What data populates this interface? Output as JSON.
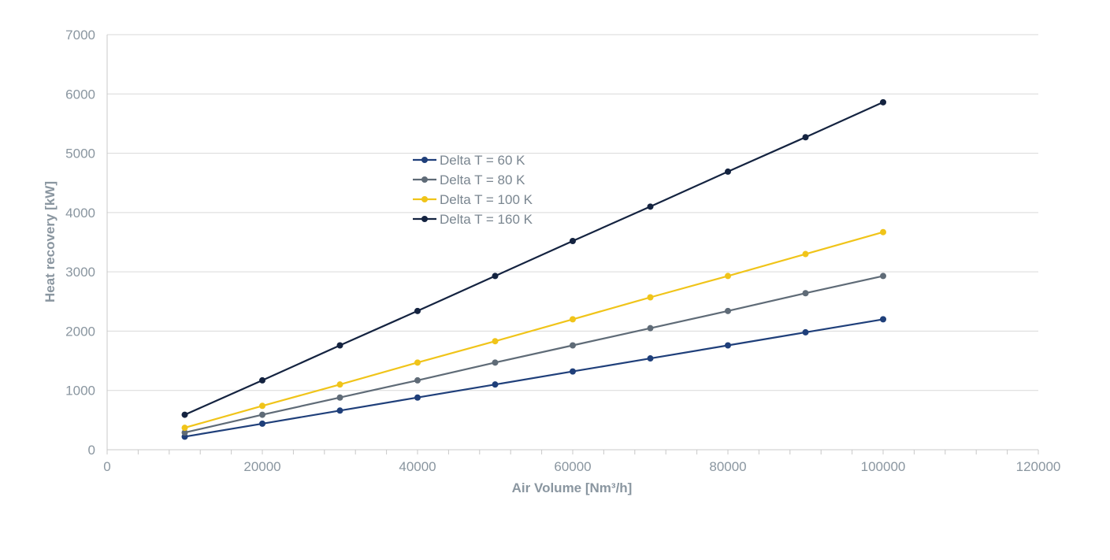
{
  "chart_data": {
    "type": "line",
    "xlabel": "Air Volume [Nm³/h]",
    "ylabel": "Heat recovery [kW]",
    "xlim": [
      0,
      120000
    ],
    "ylim": [
      0,
      7000
    ],
    "x_ticks": [
      "0",
      "20000",
      "40000",
      "60000",
      "80000",
      "100000",
      "120000"
    ],
    "y_ticks": [
      "0",
      "1000",
      "2000",
      "3000",
      "4000",
      "5000",
      "6000",
      "7000"
    ],
    "grid": "horizontal",
    "legend_position": "top-center",
    "x": [
      10000,
      20000,
      30000,
      40000,
      50000,
      60000,
      70000,
      80000,
      90000,
      100000
    ],
    "series": [
      {
        "name": "Delta T = 60 K",
        "color": "#1f3f7a",
        "values": [
          220,
          440,
          660,
          880,
          1100,
          1320,
          1540,
          1760,
          1980,
          2200
        ]
      },
      {
        "name": "Delta T = 80 K",
        "color": "#5f6b77",
        "values": [
          290,
          590,
          880,
          1170,
          1470,
          1760,
          2050,
          2340,
          2640,
          2930
        ]
      },
      {
        "name": "Delta T = 100 K",
        "color": "#f0c419",
        "values": [
          370,
          740,
          1100,
          1470,
          1830,
          2200,
          2570,
          2930,
          3300,
          3670
        ]
      },
      {
        "name": "Delta T = 160 K",
        "color": "#142340",
        "values": [
          590,
          1170,
          1760,
          2340,
          2930,
          3520,
          4100,
          4690,
          5270,
          5860
        ]
      }
    ]
  }
}
